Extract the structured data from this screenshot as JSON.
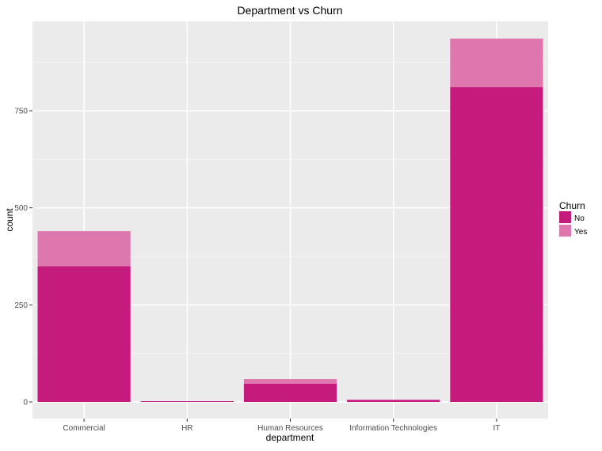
{
  "chart_data": {
    "type": "bar",
    "stacked": true,
    "title": "Department vs Churn",
    "xlabel": "department",
    "ylabel": "count",
    "categories": [
      "Commercial",
      "HR",
      "Human Resources",
      "Information Technologies",
      "IT"
    ],
    "series": [
      {
        "name": "No",
        "values": [
          350,
          2,
          47,
          5,
          811
        ],
        "color": "#c51b7d"
      },
      {
        "name": "Yes",
        "values": [
          90,
          0,
          12,
          1,
          125
        ],
        "color": "#de77ae"
      }
    ],
    "yticks": [
      0,
      250,
      500,
      750
    ],
    "ylim": [
      0,
      950
    ],
    "grid": true,
    "panel_background": "#ebebeb",
    "legend": {
      "title": "Churn",
      "position": "right"
    }
  }
}
